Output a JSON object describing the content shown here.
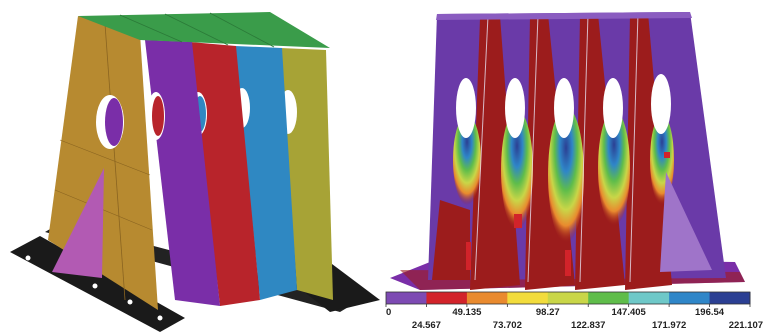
{
  "colors": {
    "background": "#ffffff",
    "plate_top": "#3a9c4a",
    "panel_left": "#b78a30",
    "rib_purple": "#7a2ea8",
    "rib_red": "#b8242b",
    "rib_blue": "#2f88c2",
    "rib_olive": "#a7a336",
    "gusset": "#b25ab3",
    "base": "#1a1a1a",
    "stress_low": "#6a3aa8",
    "stress_mid": "#9c1c1c"
  },
  "legend": {
    "colors": [
      "#7d4ab3",
      "#d2232a",
      "#e98a2e",
      "#f2dc3c",
      "#c9d648",
      "#5fbd4a",
      "#6ec8c8",
      "#2f86c8",
      "#2b3f93"
    ],
    "labels_top": [
      "0",
      "49.135",
      "98.27",
      "147.405",
      "196.54"
    ],
    "labels_bottom": [
      "24.567",
      "73.702",
      "122.837",
      "171.972",
      "221.107"
    ]
  }
}
